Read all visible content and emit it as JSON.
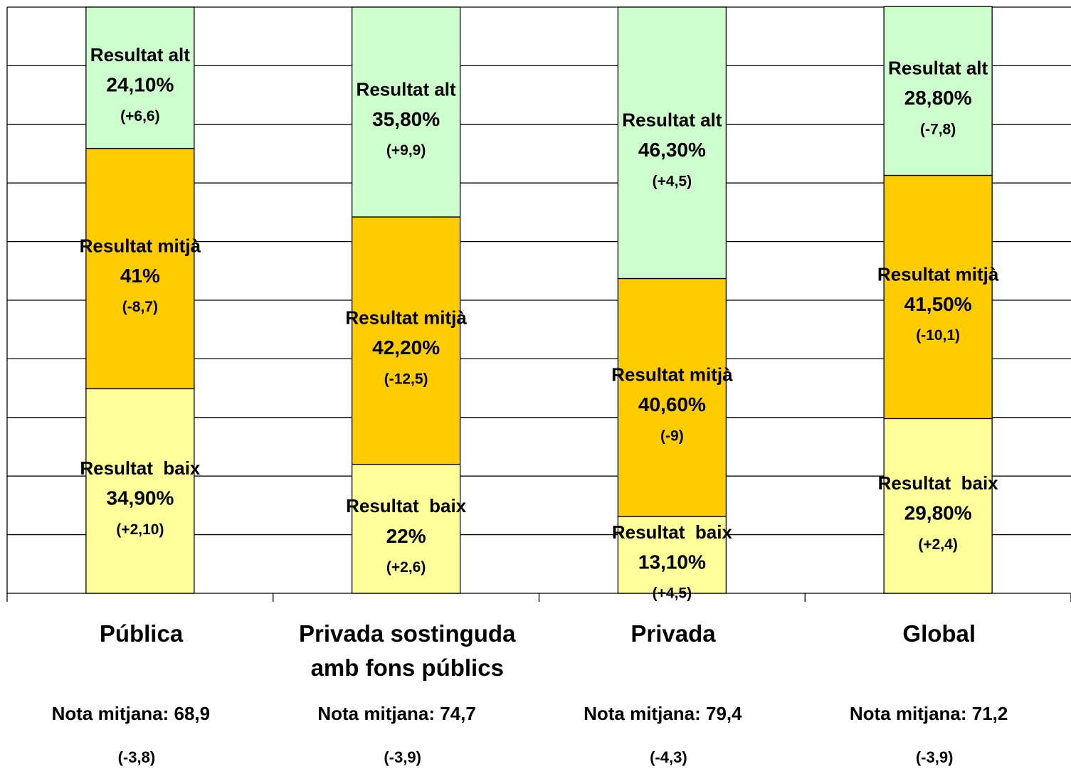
{
  "chart_data": {
    "type": "stacked_bar",
    "categories": [
      "Pública",
      "Privada sostinguda amb fons públics",
      "Privada",
      "Global"
    ],
    "series": [
      {
        "name": "Resultat  baix",
        "color": "#ffff99",
        "values": [
          34.9,
          22,
          13.1,
          29.8
        ],
        "value_labels": [
          "34,90%",
          "22%",
          "13,10%",
          "29,80%"
        ],
        "change_labels": [
          "(+2,10)",
          "(+2,6)",
          "(+4,5)",
          "(+2,4)"
        ]
      },
      {
        "name": "Resultat mitjà",
        "color": "#ffcc00",
        "values": [
          41,
          42.2,
          40.6,
          41.5
        ],
        "value_labels": [
          "41%",
          "42,20%",
          "40,60%",
          "41,50%"
        ],
        "change_labels": [
          "(-8,7)",
          "(-12,5)",
          "(-9)",
          "(-10,1)"
        ]
      },
      {
        "name": "Resultat alt",
        "color": "#ccffcc",
        "values": [
          24.1,
          35.8,
          46.3,
          28.8
        ],
        "value_labels": [
          "24,10%",
          "35,80%",
          "46,30%",
          "28,80%"
        ],
        "change_labels": [
          "(+6,6)",
          "(+9,9)",
          "(+4,5)",
          "(-7,8)"
        ]
      }
    ],
    "notes": [
      "Nota mitjana: 68,9",
      "Nota mitjana: 74,7",
      "Nota mitjana: 79,4",
      "Nota mitjana: 71,2"
    ],
    "note_changes": [
      "(-3,8)",
      "(-3,9)",
      "(-4,3)",
      "(-3,9)"
    ],
    "ylim": [
      0,
      100
    ],
    "yticks": [
      0,
      10,
      20,
      30,
      40,
      50,
      60,
      70,
      80,
      90,
      100
    ],
    "grid": true
  }
}
